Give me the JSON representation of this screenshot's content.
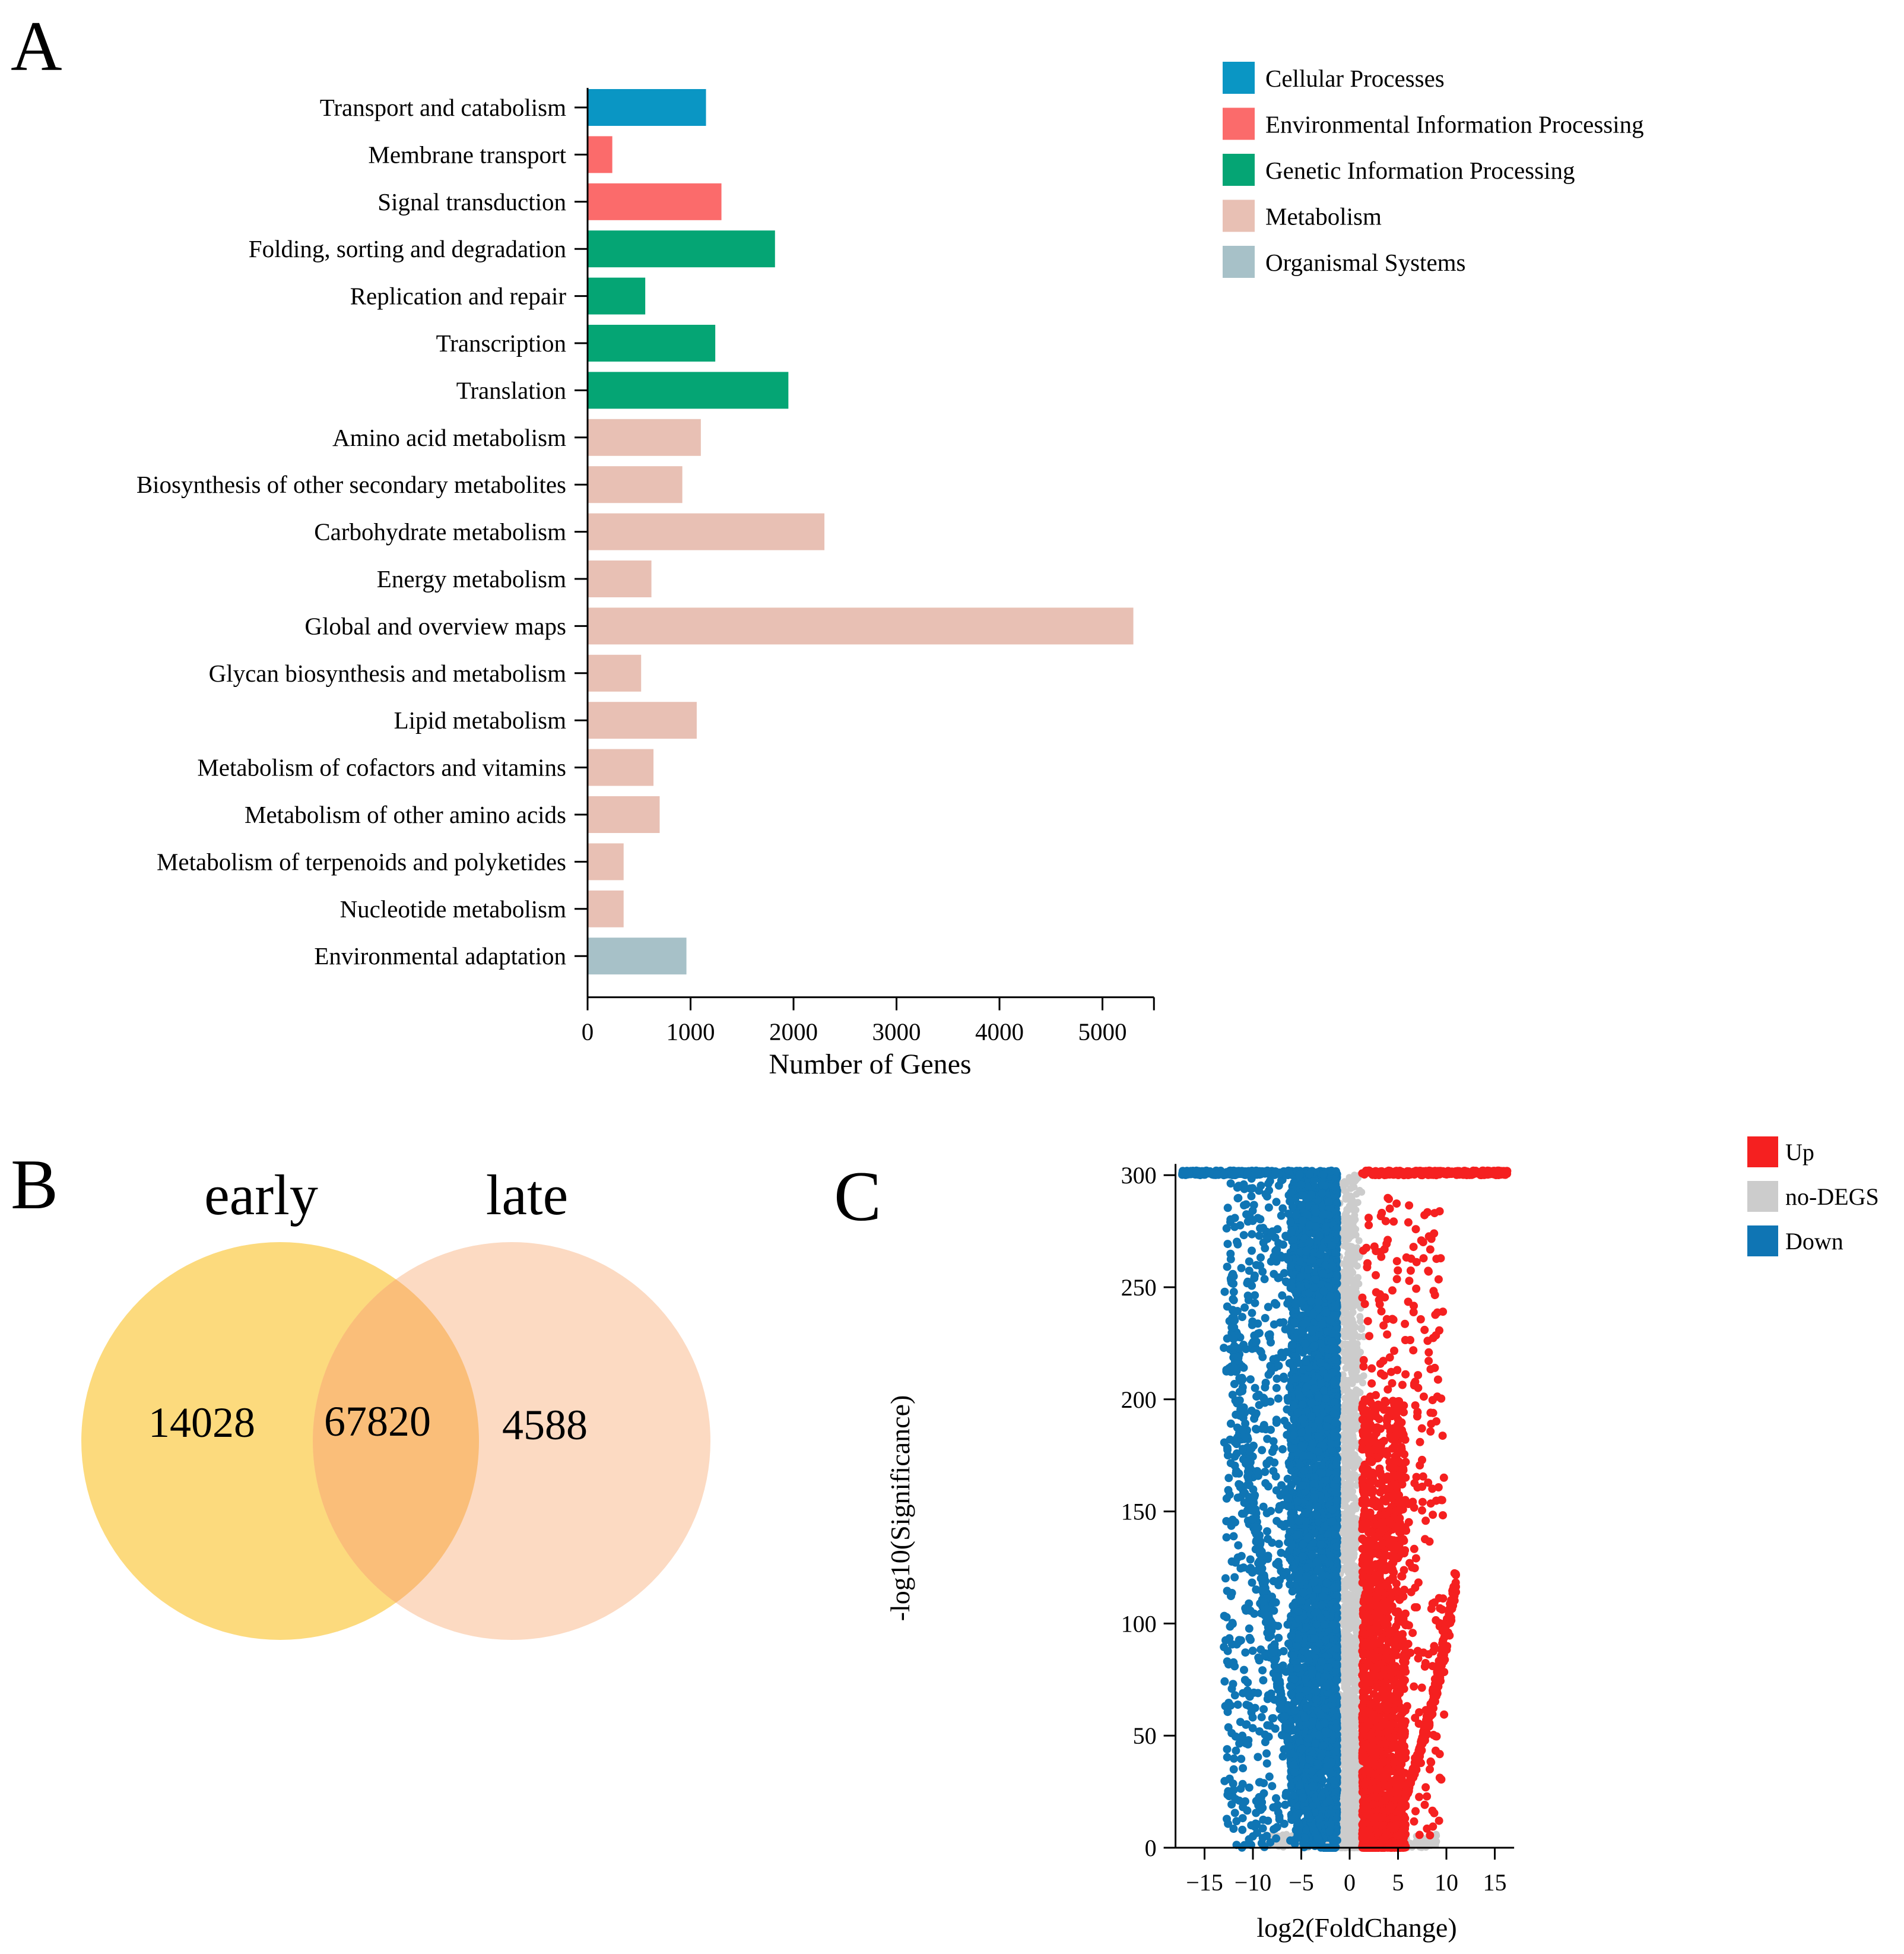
{
  "panels": {
    "a": {
      "letter": "A"
    },
    "b": {
      "letter": "B"
    },
    "c": {
      "letter": "C"
    }
  },
  "chart_data": [
    {
      "id": "kegg-bar",
      "type": "bar",
      "orientation": "horizontal",
      "xlabel": "Number of Genes",
      "ylabel": "",
      "xlim": [
        0,
        5500
      ],
      "xticks": [
        0,
        1000,
        2000,
        3000,
        4000,
        5000
      ],
      "legend_position": "top-right",
      "legend": [
        {
          "name": "Cellular Processes",
          "color": "#0a96c4"
        },
        {
          "name": "Environmental Information Processing",
          "color": "#fb6b6b"
        },
        {
          "name": "Genetic Information Processing",
          "color": "#05a574"
        },
        {
          "name": "Metabolism",
          "color": "#e8c0b4"
        },
        {
          "name": "Organismal Systems",
          "color": "#a7c1c8"
        }
      ],
      "categories": [
        "Transport and catabolism",
        "Membrane transport",
        "Signal transduction",
        "Folding, sorting and degradation",
        "Replication and repair",
        "Transcription",
        "Translation",
        "Amino acid metabolism",
        "Biosynthesis of other secondary metabolites",
        "Carbohydrate metabolism",
        "Energy metabolism",
        "Global and overview maps",
        "Glycan biosynthesis and metabolism",
        "Lipid metabolism",
        "Metabolism of cofactors and vitamins",
        "Metabolism of other amino acids",
        "Metabolism of terpenoids and polyketides",
        "Nucleotide metabolism",
        "Environmental adaptation"
      ],
      "values": [
        1150,
        240,
        1300,
        1820,
        560,
        1240,
        1950,
        1100,
        920,
        2300,
        620,
        5300,
        520,
        1060,
        640,
        700,
        350,
        350,
        960
      ],
      "groups": [
        "Cellular Processes",
        "Environmental Information Processing",
        "Environmental Information Processing",
        "Genetic Information Processing",
        "Genetic Information Processing",
        "Genetic Information Processing",
        "Genetic Information Processing",
        "Metabolism",
        "Metabolism",
        "Metabolism",
        "Metabolism",
        "Metabolism",
        "Metabolism",
        "Metabolism",
        "Metabolism",
        "Metabolism",
        "Metabolism",
        "Metabolism",
        "Organismal Systems"
      ]
    },
    {
      "id": "venn",
      "type": "venn",
      "sets": [
        {
          "name": "early",
          "only": "14028",
          "color": "#fcd56b"
        },
        {
          "name": "late",
          "only": "4588",
          "color": "#fcd6bb"
        }
      ],
      "intersection": "67820",
      "intersection_color": "#f9bb72"
    },
    {
      "id": "volcano",
      "type": "scatter",
      "xlabel": "log2(FoldChange)",
      "ylabel": "-log10(Significance)",
      "xlim": [
        -18,
        17
      ],
      "ylim": [
        0,
        305
      ],
      "xticks": [
        -15,
        -10,
        -5,
        0,
        5,
        10,
        15
      ],
      "yticks": [
        0,
        50,
        100,
        150,
        200,
        250,
        300
      ],
      "legend_position": "top-right",
      "series": [
        {
          "name": "Up",
          "color": "#f52020",
          "x_range": [
            1.2,
            16.3
          ],
          "y_range": [
            0,
            302
          ]
        },
        {
          "name": "no-DEGS",
          "color": "#cccccc",
          "x_range": [
            -1.2,
            1.2
          ],
          "y_range": [
            0,
            302
          ]
        },
        {
          "name": "Down",
          "color": "#0f75b4",
          "x_range": [
            -17.3,
            -1.2
          ],
          "y_range": [
            0,
            302
          ]
        }
      ]
    }
  ]
}
